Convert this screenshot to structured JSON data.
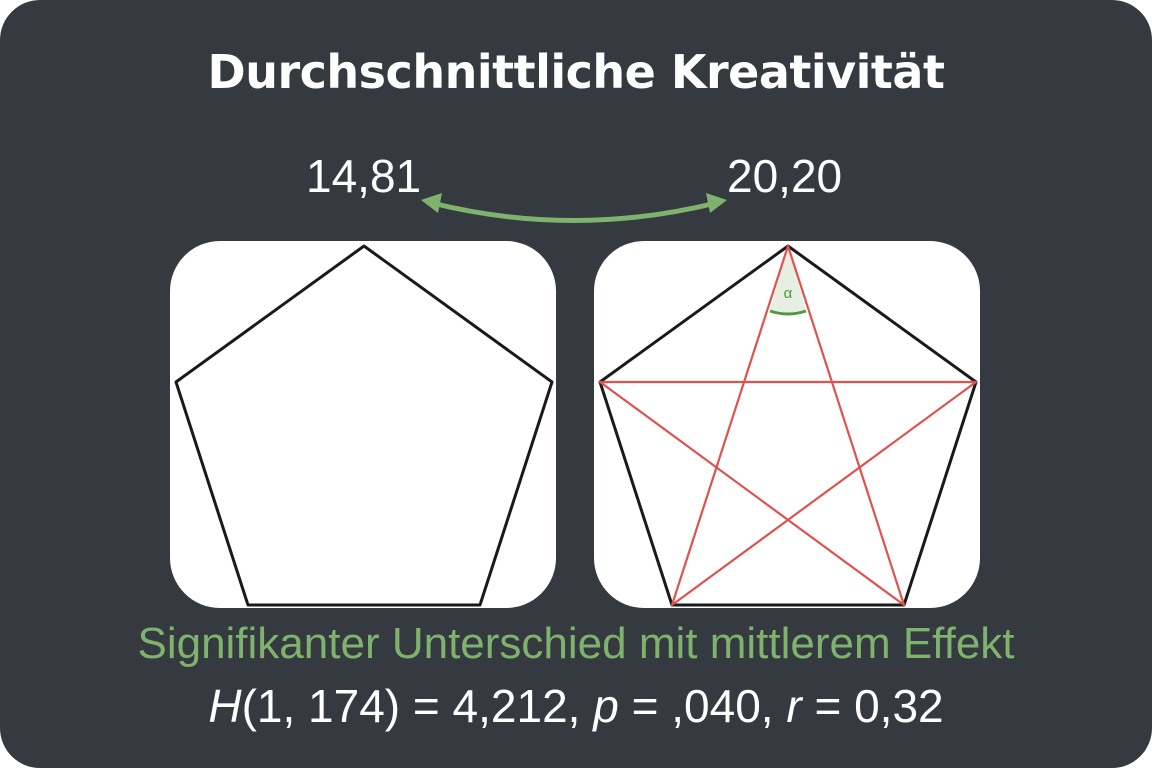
{
  "title": "Durchschnittliche Kreativität",
  "scores": {
    "left": "14,81",
    "right": "20,20"
  },
  "angle_label": "α",
  "result": "Signifikanter Unterschied mit mittlerem Effekt",
  "stats": {
    "h_symbol": "H",
    "h_args": "(1, 174) = 4,212, ",
    "p_symbol": "p",
    "p_value": " = ,040, ",
    "r_symbol": "r",
    "r_value": " = 0,32"
  },
  "colors": {
    "background": "#343a3f",
    "accent_green": "#7fb26d",
    "star_red": "#e0524d",
    "angle_green": "#4e9a3e",
    "text": "#ffffff"
  },
  "icons": [
    "double-arrow-icon",
    "pentagon-icon",
    "pentagram-icon"
  ]
}
